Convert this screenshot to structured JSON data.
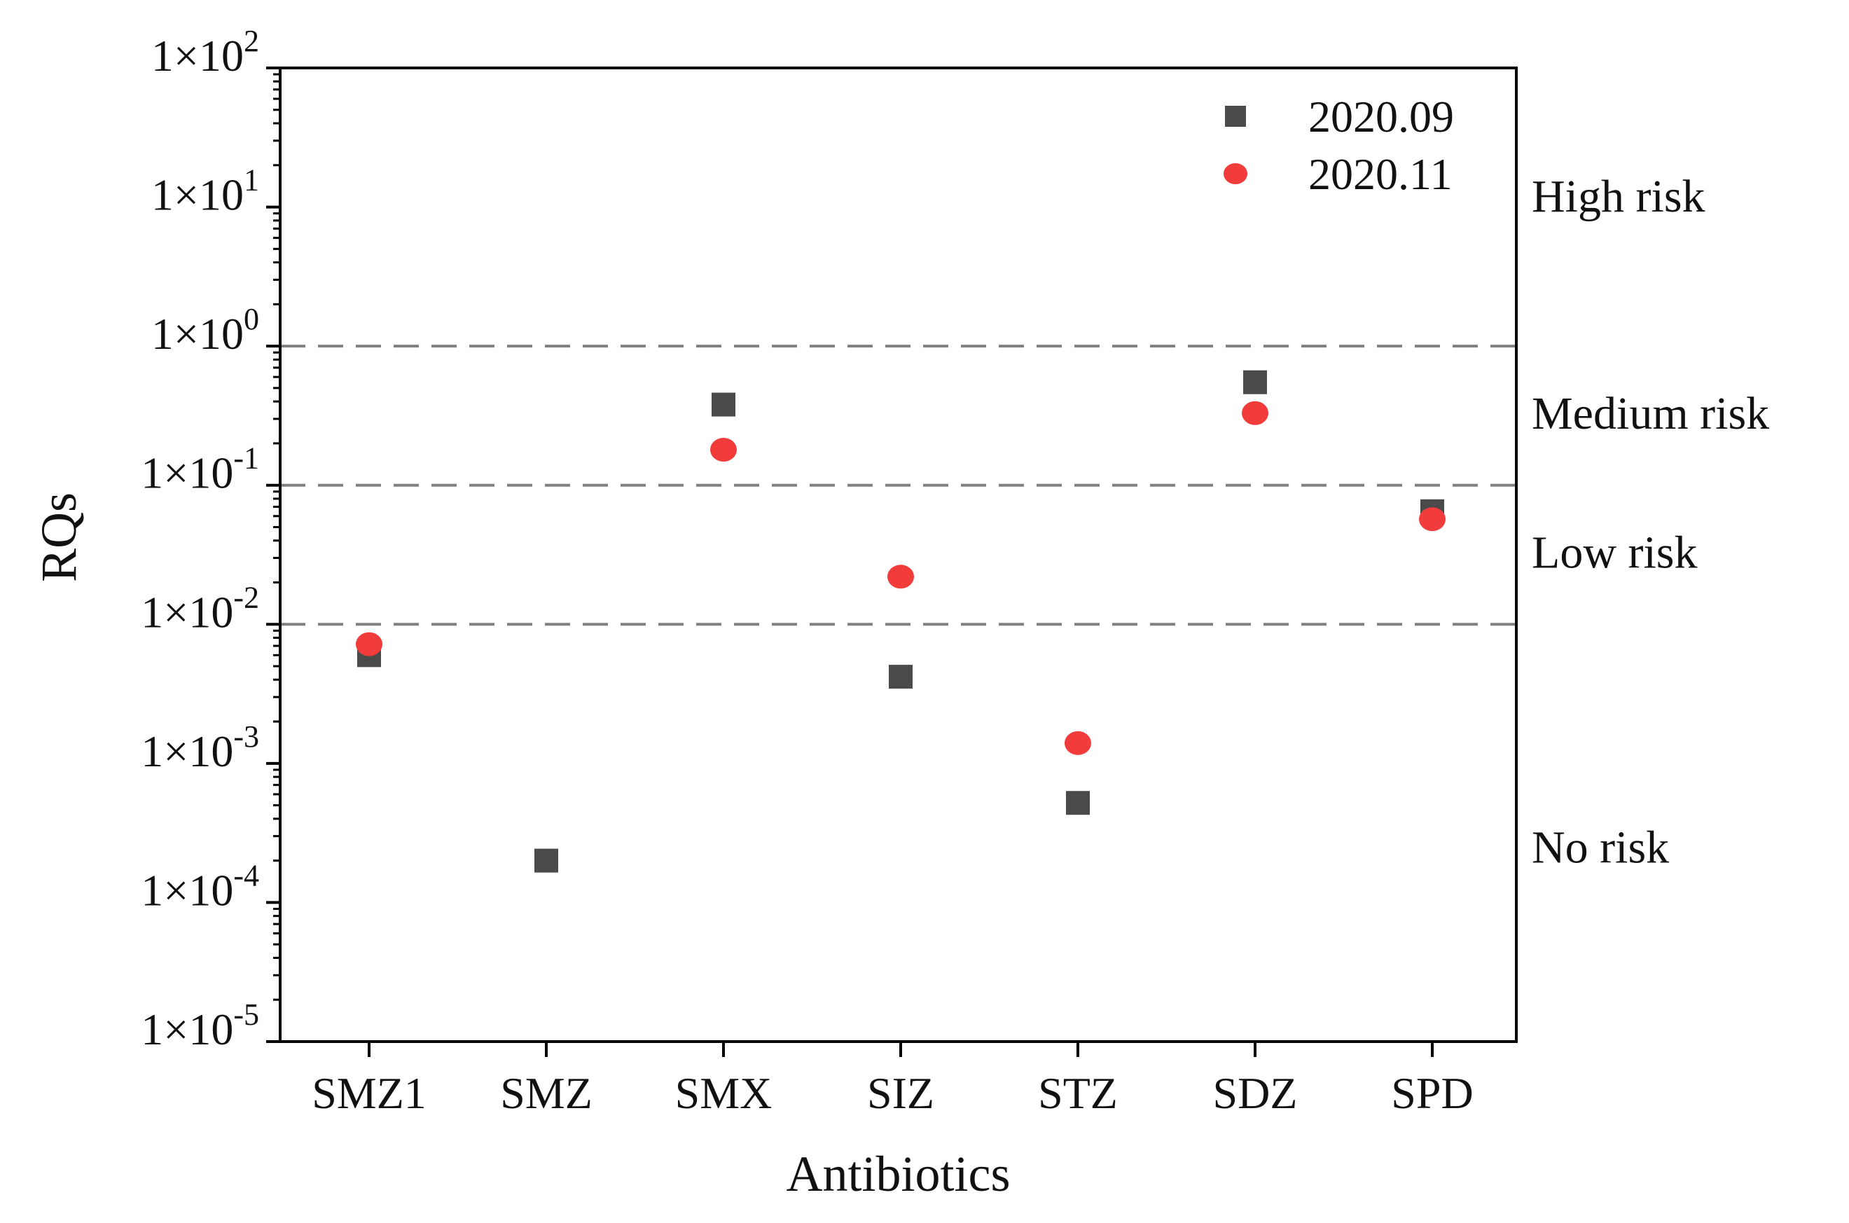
{
  "chart_data": {
    "type": "scatter",
    "xlabel": "Antibiotics",
    "ylabel": "RQs",
    "y_scale": "log",
    "ylim": [
      1e-05,
      100
    ],
    "y_ticks": [
      {
        "value": 100,
        "base": "1×10",
        "exp": "2"
      },
      {
        "value": 10,
        "base": "1×10",
        "exp": "1"
      },
      {
        "value": 1,
        "base": "1×10",
        "exp": "0"
      },
      {
        "value": 0.1,
        "base": "1×10",
        "exp": "-1"
      },
      {
        "value": 0.01,
        "base": "1×10",
        "exp": "-2"
      },
      {
        "value": 0.001,
        "base": "1×10",
        "exp": "-3"
      },
      {
        "value": 0.0001,
        "base": "1×10",
        "exp": "-4"
      },
      {
        "value": 1e-05,
        "base": "1×10",
        "exp": "-5"
      }
    ],
    "categories": [
      "SMZ1",
      "SMZ",
      "SMX",
      "SIZ",
      "STZ",
      "SDZ",
      "SPD"
    ],
    "series": [
      {
        "name": "2020.09",
        "marker": "square",
        "color": "#4a4a4a",
        "values": [
          0.006,
          0.0002,
          0.38,
          0.0042,
          0.00052,
          0.55,
          0.065
        ]
      },
      {
        "name": "2020.11",
        "marker": "circle",
        "color": "#f23b3b",
        "values": [
          0.0072,
          null,
          0.18,
          0.022,
          0.0014,
          0.33,
          0.057
        ]
      }
    ],
    "thresholds": [
      1,
      0.1,
      0.01
    ],
    "risk_labels": [
      {
        "label": "High risk",
        "value": 12
      },
      {
        "label": "Medium risk",
        "value": 0.33
      },
      {
        "label": "Low risk",
        "value": 0.033
      },
      {
        "label": "No risk",
        "value": 0.00025
      }
    ]
  }
}
